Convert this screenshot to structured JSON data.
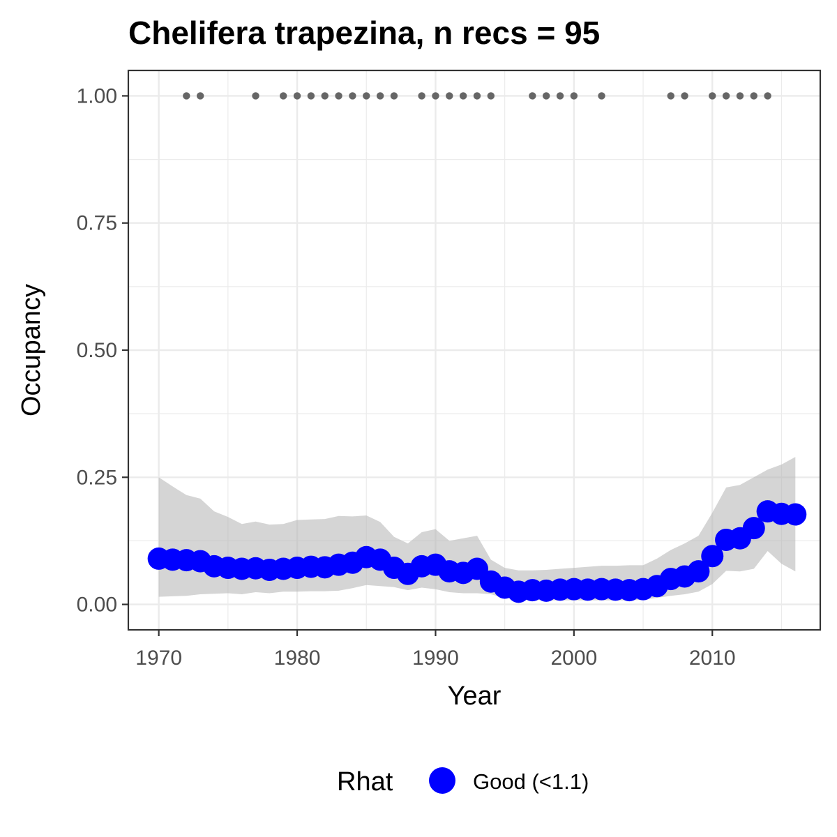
{
  "chart_data": {
    "type": "line",
    "title": "Chelifera trapezina, n recs = 95",
    "xlabel": "Year",
    "ylabel": "Occupancy",
    "xlim": [
      1967.8,
      2017.8
    ],
    "ylim": [
      -0.05,
      1.05
    ],
    "x_ticks": [
      1970,
      1980,
      1990,
      2000,
      2010
    ],
    "x_tick_labels": [
      "1970",
      "1980",
      "1990",
      "2000",
      "2010"
    ],
    "y_ticks": [
      0,
      0.25,
      0.5,
      0.75,
      1
    ],
    "y_tick_labels": [
      "0.00",
      "0.25",
      "0.50",
      "0.75",
      "1.00"
    ],
    "grid": true,
    "legend": {
      "title": "Rhat",
      "position": "bottom",
      "entries": [
        {
          "label": "Good (<1.1)",
          "color": "#0000ff"
        }
      ]
    },
    "colors": {
      "series": "#0000ff",
      "ribbon": "#b3b3b3",
      "records": "#666666",
      "grid": "#ebebeb",
      "panel_border": "#333333"
    },
    "series": [
      {
        "rhat": "Good (<1.1)",
        "x": [
          1970,
          1971,
          1972,
          1973,
          1974,
          1975,
          1976,
          1977,
          1978,
          1979,
          1980,
          1981,
          1982,
          1983,
          1984,
          1985,
          1986,
          1987,
          1988,
          1989,
          1990,
          1991,
          1992,
          1993,
          1994,
          1995,
          1996,
          1997,
          1998,
          1999,
          2000,
          2001,
          2002,
          2003,
          2004,
          2005,
          2006,
          2007,
          2008,
          2009,
          2010,
          2011,
          2012,
          2013,
          2014,
          2015,
          2016
        ],
        "y": [
          0.09,
          0.088,
          0.087,
          0.085,
          0.075,
          0.072,
          0.07,
          0.071,
          0.068,
          0.07,
          0.072,
          0.074,
          0.073,
          0.078,
          0.082,
          0.093,
          0.088,
          0.072,
          0.06,
          0.075,
          0.078,
          0.065,
          0.062,
          0.07,
          0.045,
          0.033,
          0.025,
          0.028,
          0.027,
          0.029,
          0.03,
          0.029,
          0.03,
          0.029,
          0.028,
          0.03,
          0.036,
          0.05,
          0.055,
          0.065,
          0.095,
          0.127,
          0.13,
          0.15,
          0.183,
          0.178,
          0.177
        ],
        "lower": [
          0.015,
          0.016,
          0.017,
          0.02,
          0.021,
          0.022,
          0.02,
          0.024,
          0.022,
          0.025,
          0.025,
          0.026,
          0.026,
          0.027,
          0.032,
          0.038,
          0.036,
          0.034,
          0.028,
          0.033,
          0.03,
          0.024,
          0.022,
          0.022,
          0.02,
          0.013,
          0.009,
          0.009,
          0.008,
          0.008,
          0.008,
          0.008,
          0.008,
          0.008,
          0.008,
          0.009,
          0.013,
          0.017,
          0.02,
          0.025,
          0.04,
          0.066,
          0.065,
          0.07,
          0.105,
          0.08,
          0.065
        ],
        "upper": [
          0.25,
          0.232,
          0.215,
          0.208,
          0.183,
          0.172,
          0.158,
          0.163,
          0.157,
          0.158,
          0.166,
          0.167,
          0.168,
          0.174,
          0.173,
          0.175,
          0.162,
          0.133,
          0.12,
          0.142,
          0.148,
          0.125,
          0.13,
          0.135,
          0.088,
          0.072,
          0.067,
          0.067,
          0.068,
          0.07,
          0.072,
          0.074,
          0.076,
          0.076,
          0.077,
          0.077,
          0.09,
          0.107,
          0.12,
          0.135,
          0.18,
          0.23,
          0.235,
          0.25,
          0.265,
          0.275,
          0.29
        ]
      }
    ],
    "records": {
      "y": 1,
      "x": [
        1972,
        1973,
        1977,
        1979,
        1980,
        1981,
        1982,
        1983,
        1984,
        1985,
        1986,
        1987,
        1989,
        1990,
        1991,
        1992,
        1993,
        1994,
        1997,
        1998,
        1999,
        2000,
        2002,
        2007,
        2008,
        2010,
        2011,
        2012,
        2013,
        2014
      ]
    }
  }
}
